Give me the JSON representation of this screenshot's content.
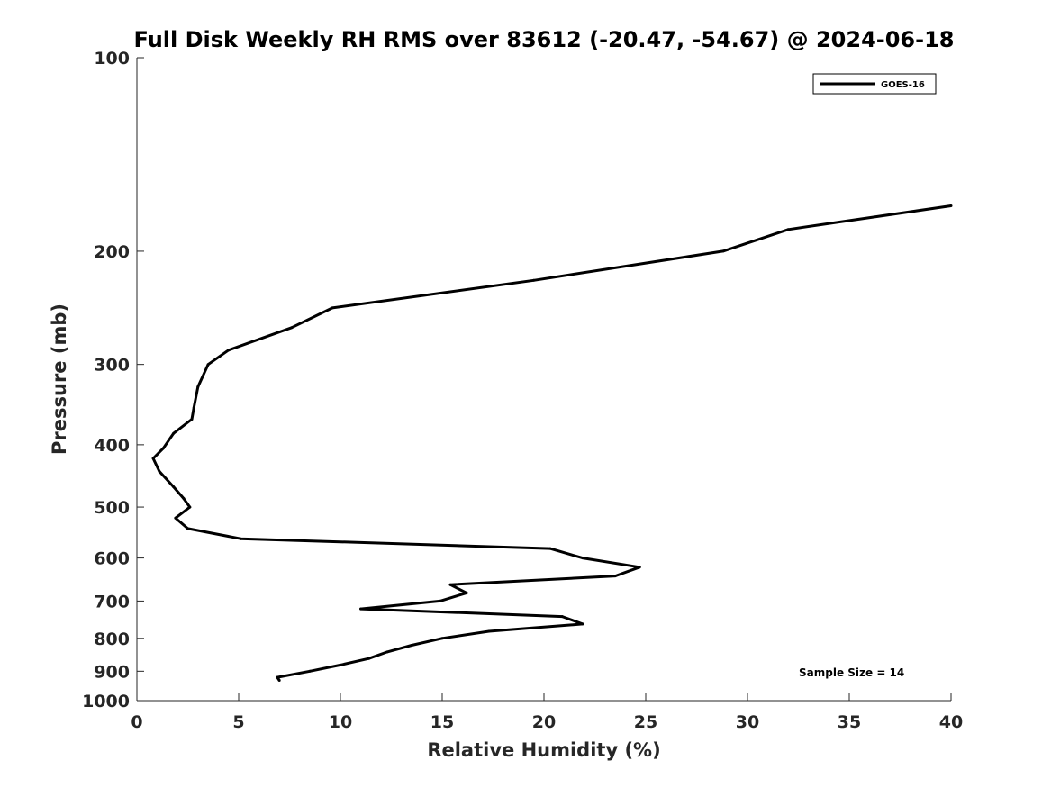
{
  "chart_data": {
    "type": "line",
    "title": "Full Disk Weekly RH RMS over 83612 (-20.47, -54.67) @ 2024-06-18",
    "xlabel": "Relative Humidity (%)",
    "ylabel": "Pressure (mb)",
    "xlim": [
      0,
      40
    ],
    "ylim": [
      100,
      1000
    ],
    "y_scale": "log",
    "y_reversed": true,
    "x_ticks": [
      0,
      5,
      10,
      15,
      20,
      25,
      30,
      35,
      40
    ],
    "y_ticks": [
      100,
      200,
      300,
      400,
      500,
      600,
      700,
      800,
      900,
      1000
    ],
    "grid": false,
    "legend_position": "top-right",
    "series": [
      {
        "name": "GOES-16",
        "color": "#000000",
        "points": [
          {
            "x": 40.0,
            "y": 170
          },
          {
            "x": 32.0,
            "y": 185
          },
          {
            "x": 28.8,
            "y": 200
          },
          {
            "x": 19.5,
            "y": 222
          },
          {
            "x": 9.6,
            "y": 245
          },
          {
            "x": 7.6,
            "y": 263
          },
          {
            "x": 4.5,
            "y": 285
          },
          {
            "x": 3.5,
            "y": 300
          },
          {
            "x": 3.0,
            "y": 325
          },
          {
            "x": 2.8,
            "y": 350
          },
          {
            "x": 2.7,
            "y": 365
          },
          {
            "x": 1.8,
            "y": 384
          },
          {
            "x": 1.3,
            "y": 405
          },
          {
            "x": 0.8,
            "y": 420
          },
          {
            "x": 1.1,
            "y": 440
          },
          {
            "x": 1.8,
            "y": 465
          },
          {
            "x": 2.3,
            "y": 485
          },
          {
            "x": 2.6,
            "y": 500
          },
          {
            "x": 1.9,
            "y": 520
          },
          {
            "x": 2.5,
            "y": 540
          },
          {
            "x": 5.1,
            "y": 560
          },
          {
            "x": 20.3,
            "y": 580
          },
          {
            "x": 21.9,
            "y": 600
          },
          {
            "x": 24.7,
            "y": 620
          },
          {
            "x": 23.5,
            "y": 640
          },
          {
            "x": 15.4,
            "y": 660
          },
          {
            "x": 16.2,
            "y": 680
          },
          {
            "x": 14.9,
            "y": 700
          },
          {
            "x": 11.0,
            "y": 720
          },
          {
            "x": 20.9,
            "y": 740
          },
          {
            "x": 21.9,
            "y": 760
          },
          {
            "x": 17.3,
            "y": 780
          },
          {
            "x": 15.0,
            "y": 800
          },
          {
            "x": 13.5,
            "y": 820
          },
          {
            "x": 12.3,
            "y": 840
          },
          {
            "x": 11.4,
            "y": 860
          },
          {
            "x": 10.0,
            "y": 880
          },
          {
            "x": 8.5,
            "y": 900
          },
          {
            "x": 6.9,
            "y": 920
          },
          {
            "x": 7.0,
            "y": 930
          }
        ]
      }
    ],
    "annotations": [
      {
        "text": "Sample Size = 14"
      }
    ]
  }
}
